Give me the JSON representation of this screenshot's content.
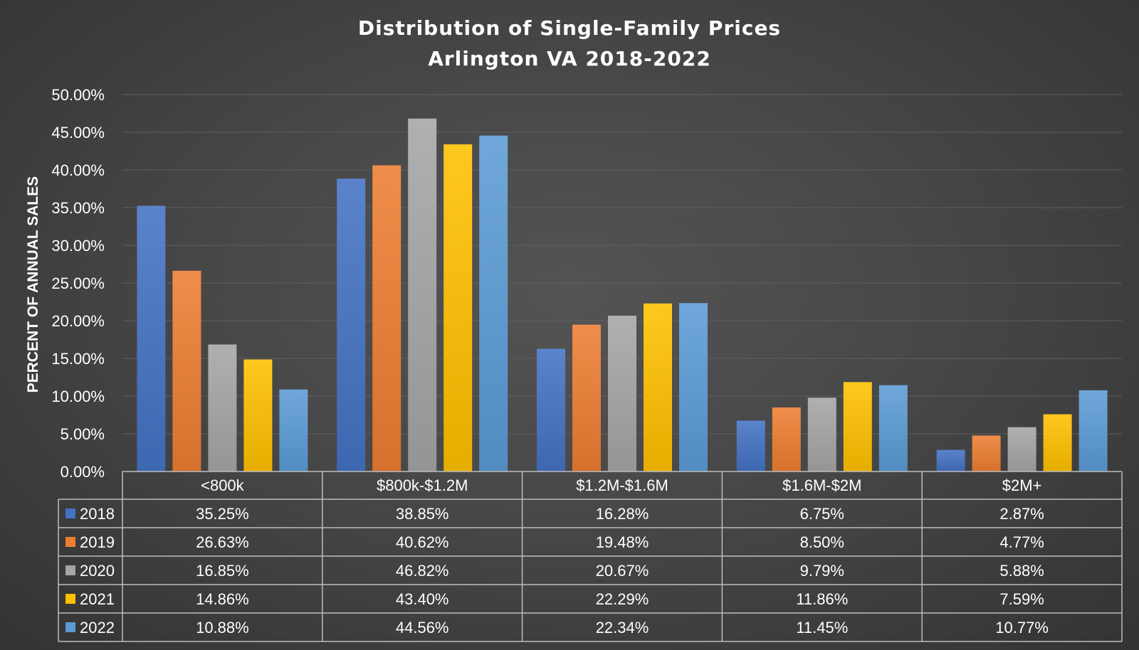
{
  "chart_data": {
    "type": "bar",
    "title": "Distribution of Single-Family Prices",
    "subtitle": "Arlington VA 2018-2022",
    "xlabel": "",
    "ylabel": "PERCENT OF ANNUAL SALES",
    "ylim": [
      0,
      50
    ],
    "yticks": [
      "0.00%",
      "5.00%",
      "10.00%",
      "15.00%",
      "20.00%",
      "25.00%",
      "30.00%",
      "35.00%",
      "40.00%",
      "45.00%",
      "50.00%"
    ],
    "grid": true,
    "categories": [
      "<800k",
      "$800k-$1.2M",
      "$1.2M-$1.6M",
      "$1.6M-$2M",
      "$2M+"
    ],
    "series": [
      {
        "name": "2018",
        "color": "#4472c4",
        "values": [
          35.25,
          38.85,
          16.28,
          6.75,
          2.87
        ],
        "labels": [
          "35.25%",
          "38.85%",
          "16.28%",
          "6.75%",
          "2.87%"
        ]
      },
      {
        "name": "2019",
        "color": "#ed7d31",
        "values": [
          26.63,
          40.62,
          19.48,
          8.5,
          4.77
        ],
        "labels": [
          "26.63%",
          "40.62%",
          "19.48%",
          "8.50%",
          "4.77%"
        ]
      },
      {
        "name": "2020",
        "color": "#a5a5a5",
        "values": [
          16.85,
          46.82,
          20.67,
          9.79,
          5.88
        ],
        "labels": [
          "16.85%",
          "46.82%",
          "20.67%",
          "9.79%",
          "5.88%"
        ]
      },
      {
        "name": "2021",
        "color": "#ffc000",
        "values": [
          14.86,
          43.4,
          22.29,
          11.86,
          7.59
        ],
        "labels": [
          "14.86%",
          "43.40%",
          "22.29%",
          "11.86%",
          "7.59%"
        ]
      },
      {
        "name": "2022",
        "color": "#5b9bd5",
        "values": [
          10.88,
          44.56,
          22.34,
          11.45,
          10.77
        ],
        "labels": [
          "10.88%",
          "44.56%",
          "22.34%",
          "11.45%",
          "10.77%"
        ]
      }
    ],
    "data_table": true
  }
}
